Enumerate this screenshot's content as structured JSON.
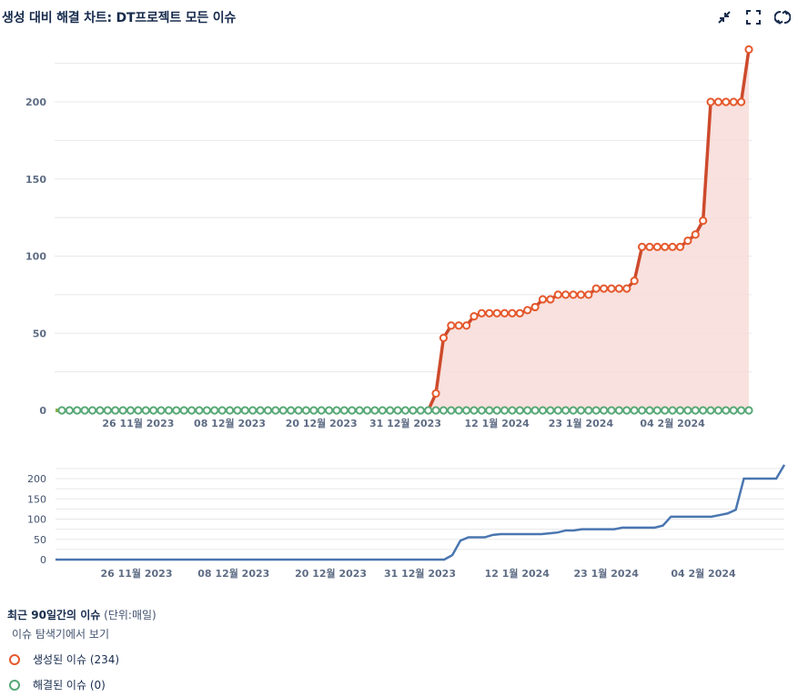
{
  "header": {
    "title": "생성 대비 해결 차트: DT프로젝트 모든 이슈",
    "actions": [
      {
        "name": "minimize-icon",
        "label": "collapse"
      },
      {
        "name": "fullscreen-icon",
        "label": "fullscreen"
      },
      {
        "name": "refresh-icon",
        "label": "refresh"
      }
    ]
  },
  "colors": {
    "created": "#e5592d",
    "created_line": "#cd4a2c",
    "created_fill": "#f7dcd8",
    "resolved": "#57a876",
    "navigator_line": "#4a76b0",
    "grid": "#e8e8ec",
    "axis_text": "#5e6c84"
  },
  "chart_data": {
    "type": "line",
    "title": "생성 대비 해결 차트: DT프로젝트 모든 이슈",
    "xlabel": "",
    "ylabel": "",
    "ylim": [
      0,
      240
    ],
    "yticks": [
      0,
      50,
      100,
      150,
      200
    ],
    "grid": true,
    "x_tick_labels": [
      "26 11월 2023",
      "08 12월 2023",
      "20 12월 2023",
      "31 12월 2023",
      "12 1월 2024",
      "23 1월 2024",
      "04 2월 2024"
    ],
    "x_tick_index": [
      10,
      22,
      34,
      45,
      57,
      68,
      80
    ],
    "num_points": 91,
    "series": [
      {
        "name": "생성된 이슈",
        "total": 234,
        "values": [
          0,
          0,
          0,
          0,
          0,
          0,
          0,
          0,
          0,
          0,
          0,
          0,
          0,
          0,
          0,
          0,
          0,
          0,
          0,
          0,
          0,
          0,
          0,
          0,
          0,
          0,
          0,
          0,
          0,
          0,
          0,
          0,
          0,
          0,
          0,
          0,
          0,
          0,
          0,
          0,
          0,
          0,
          0,
          0,
          0,
          0,
          0,
          0,
          0,
          11,
          47,
          55,
          55,
          55,
          61,
          63,
          63,
          63,
          63,
          63,
          63,
          65,
          67,
          72,
          72,
          75,
          75,
          75,
          75,
          75,
          79,
          79,
          79,
          79,
          79,
          84,
          106,
          106,
          106,
          106,
          106,
          106,
          110,
          114,
          123,
          200,
          200,
          200,
          200,
          200,
          234
        ]
      },
      {
        "name": "해결된 이슈",
        "total": 0,
        "values": [
          0,
          0,
          0,
          0,
          0,
          0,
          0,
          0,
          0,
          0,
          0,
          0,
          0,
          0,
          0,
          0,
          0,
          0,
          0,
          0,
          0,
          0,
          0,
          0,
          0,
          0,
          0,
          0,
          0,
          0,
          0,
          0,
          0,
          0,
          0,
          0,
          0,
          0,
          0,
          0,
          0,
          0,
          0,
          0,
          0,
          0,
          0,
          0,
          0,
          0,
          0,
          0,
          0,
          0,
          0,
          0,
          0,
          0,
          0,
          0,
          0,
          0,
          0,
          0,
          0,
          0,
          0,
          0,
          0,
          0,
          0,
          0,
          0,
          0,
          0,
          0,
          0,
          0,
          0,
          0,
          0,
          0,
          0,
          0,
          0,
          0,
          0,
          0,
          0,
          0,
          0
        ]
      }
    ],
    "navigator": {
      "yticks": [
        0,
        50,
        100,
        150,
        200
      ],
      "x_tick_labels": [
        "26 11월 2023",
        "08 12월 2023",
        "20 12월 2023",
        "31 12월 2023",
        "12 1월 2024",
        "23 1월 2024",
        "04 2월 2024"
      ]
    },
    "legend_position": "bottom-left"
  },
  "legend": {
    "title_bold": "최근 90일간의 이슈",
    "title_unit": "(단위:매일)",
    "link": "이슈 탐색기에서 보기",
    "items": [
      {
        "label": "생성된 이슈 (234)"
      },
      {
        "label": "해결된 이슈 (0)"
      }
    ]
  }
}
